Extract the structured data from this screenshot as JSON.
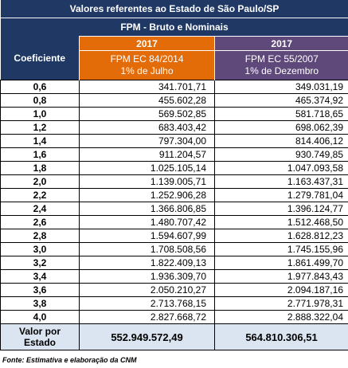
{
  "title": "Valores referentes ao Estado de São Paulo/SP",
  "subtitle": "FPM - Bruto e Nominais",
  "header": {
    "coef_label": "Coeficiente",
    "col_a": {
      "year": "2017",
      "line1": "FPM EC 84/2014",
      "line2": "1% de Julho"
    },
    "col_b": {
      "year": "2017",
      "line1": "FPM EC 55/2007",
      "line2": "1% de Dezembro"
    }
  },
  "rows": [
    {
      "coef": "0,6",
      "a": "341.701,71",
      "b": "349.031,19"
    },
    {
      "coef": "0,8",
      "a": "455.602,28",
      "b": "465.374,92"
    },
    {
      "coef": "1,0",
      "a": "569.502,85",
      "b": "581.718,65"
    },
    {
      "coef": "1,2",
      "a": "683.403,42",
      "b": "698.062,39"
    },
    {
      "coef": "1,4",
      "a": "797.304,00",
      "b": "814.406,12"
    },
    {
      "coef": "1,6",
      "a": "911.204,57",
      "b": "930.749,85"
    },
    {
      "coef": "1,8",
      "a": "1.025.105,14",
      "b": "1.047.093,58"
    },
    {
      "coef": "2,0",
      "a": "1.139.005,71",
      "b": "1.163.437,31"
    },
    {
      "coef": "2,2",
      "a": "1.252.906,28",
      "b": "1.279.781,04"
    },
    {
      "coef": "2,4",
      "a": "1.366.806,85",
      "b": "1.396.124,77"
    },
    {
      "coef": "2,6",
      "a": "1.480.707,42",
      "b": "1.512.468,50"
    },
    {
      "coef": "2,8",
      "a": "1.594.607,99",
      "b": "1.628.812,23"
    },
    {
      "coef": "3,0",
      "a": "1.708.508,56",
      "b": "1.745.155,96"
    },
    {
      "coef": "3,2",
      "a": "1.822.409,13",
      "b": "1.861.499,70"
    },
    {
      "coef": "3,4",
      "a": "1.936.309,70",
      "b": "1.977.843,43"
    },
    {
      "coef": "3,6",
      "a": "2.050.210,27",
      "b": "2.094.187,16"
    },
    {
      "coef": "3,8",
      "a": "2.713.768,15",
      "b": "2.771.978,31"
    },
    {
      "coef": "4,0",
      "a": "2.827.668,72",
      "b": "2.888.322,04"
    }
  ],
  "total": {
    "label_line1": "Valor por",
    "label_line2": "Estado",
    "a": "552.949.572,49",
    "b": "564.810.306,51"
  },
  "source": "Fonte: Estimativa e elaboração da CNM",
  "colors": {
    "navy": "#1f3864",
    "orange": "#e36c09",
    "purple": "#5f497a",
    "total_bg": "#dbe5f1"
  }
}
